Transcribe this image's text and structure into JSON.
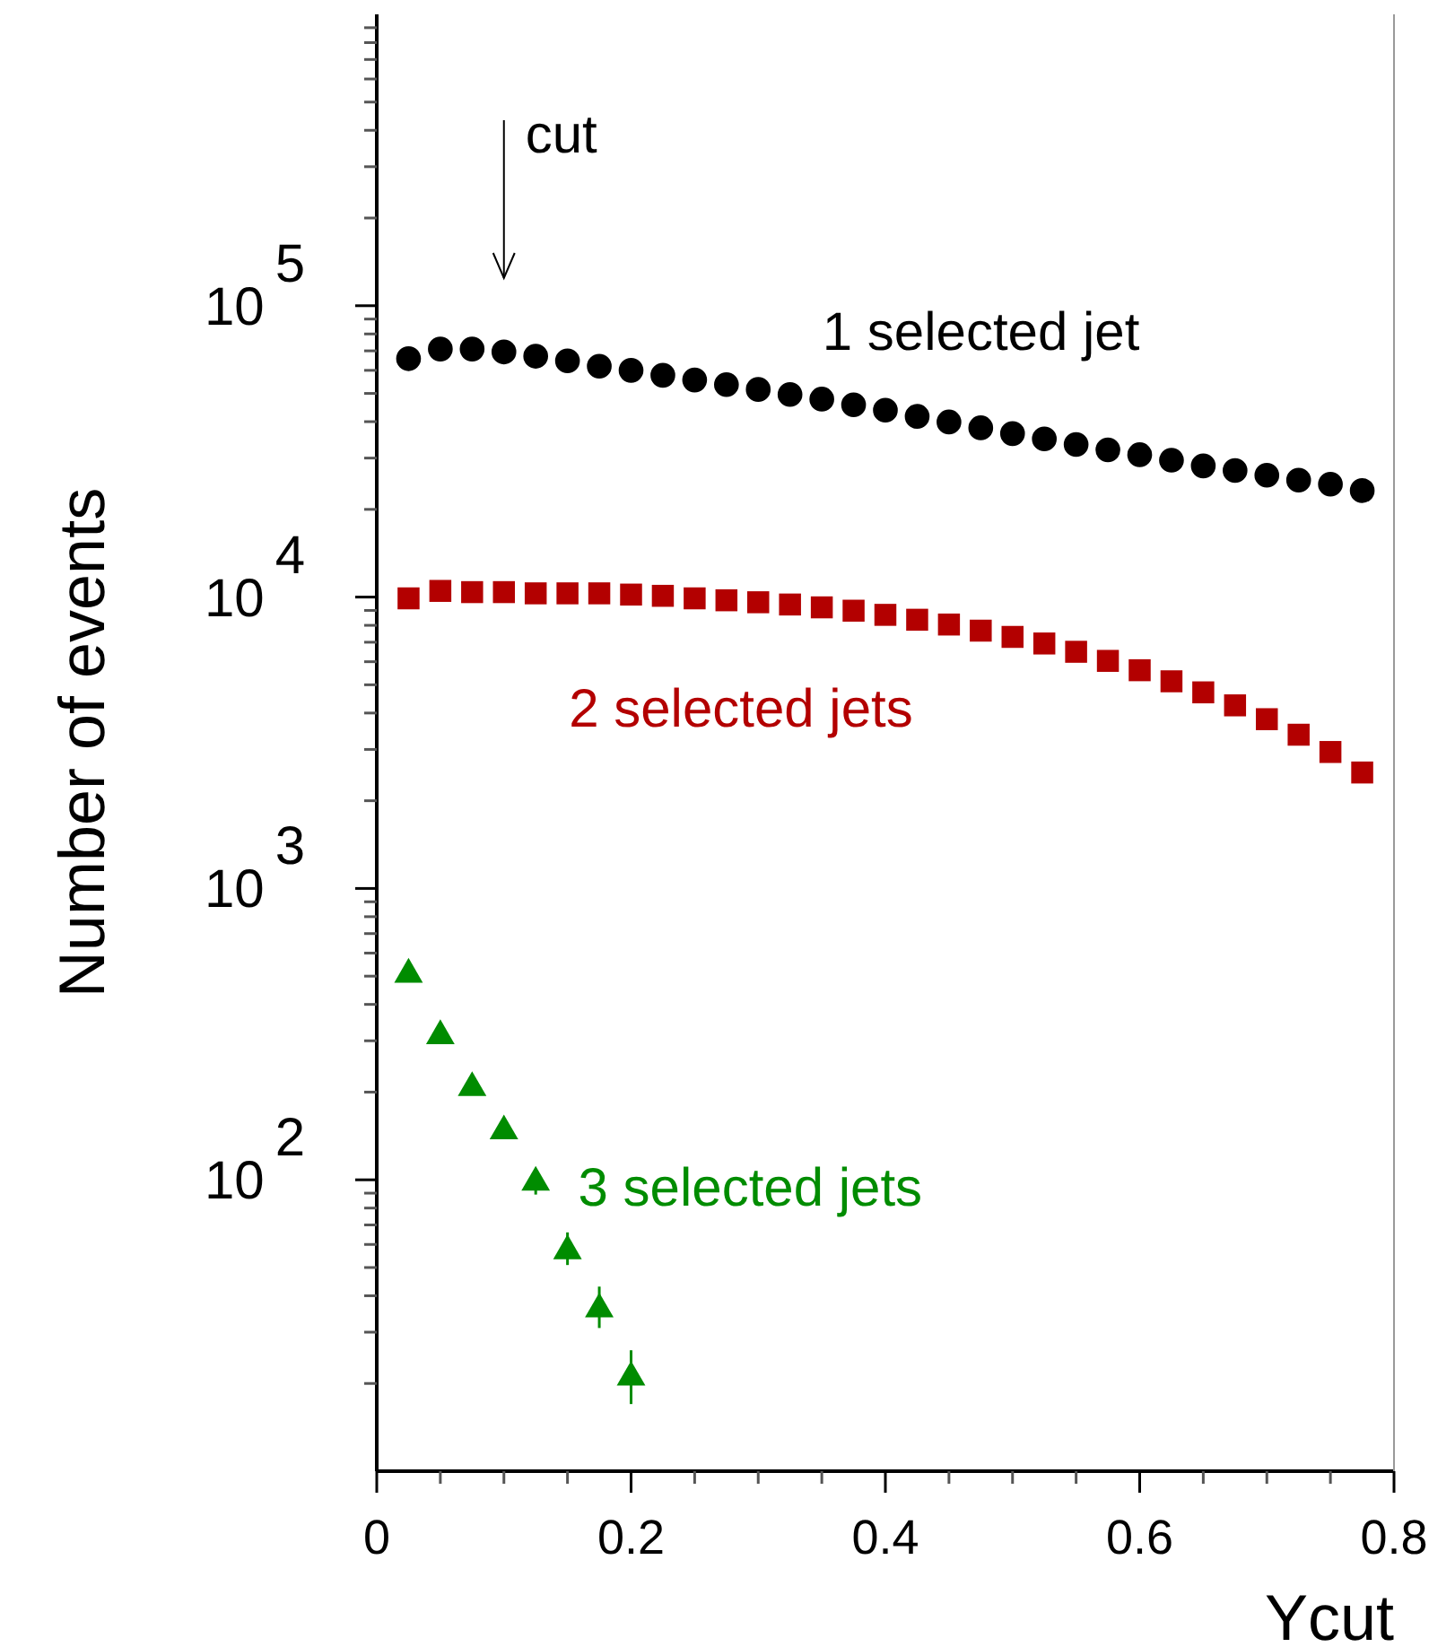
{
  "chart_data": {
    "type": "scatter",
    "xlabel": "Ycut",
    "ylabel": "Number of events",
    "log": "y",
    "legend": false,
    "xlim": [
      0,
      0.8
    ],
    "ylim": [
      10,
      1000000
    ],
    "xticks": [
      0,
      {
        "value": 0.05,
        "label": null
      },
      {
        "value": 0.1,
        "label": null
      },
      {
        "value": 0.15,
        "label": null
      },
      0.2,
      {
        "value": 0.25,
        "label": null
      },
      {
        "value": 0.3,
        "label": null
      },
      {
        "value": 0.35,
        "label": null
      },
      0.4,
      {
        "value": 0.45,
        "label": null
      },
      {
        "value": 0.5,
        "label": null
      },
      {
        "value": 0.55,
        "label": null
      },
      0.6,
      {
        "value": 0.65,
        "label": null
      },
      {
        "value": 0.7,
        "label": null
      },
      {
        "value": 0.75,
        "label": null
      },
      0.8
    ],
    "yticks": [
      {
        "value": 20,
        "label": null
      },
      {
        "value": 30,
        "label": null
      },
      {
        "value": 40,
        "label": null
      },
      {
        "value": 50,
        "label": null
      },
      {
        "value": 60,
        "label": null
      },
      {
        "value": 70,
        "label": null
      },
      {
        "value": 80,
        "label": null
      },
      {
        "value": 90,
        "label": null
      },
      {
        "value": 100,
        "label": "10$^{2}$"
      },
      {
        "value": 200,
        "label": null
      },
      {
        "value": 300,
        "label": null
      },
      {
        "value": 400,
        "label": null
      },
      {
        "value": 500,
        "label": null
      },
      {
        "value": 600,
        "label": null
      },
      {
        "value": 700,
        "label": null
      },
      {
        "value": 800,
        "label": null
      },
      {
        "value": 900,
        "label": null
      },
      {
        "value": 1000,
        "label": "10$^{3}$"
      },
      {
        "value": 2000,
        "label": null
      },
      {
        "value": 3000,
        "label": null
      },
      {
        "value": 4000,
        "label": null
      },
      {
        "value": 5000,
        "label": null
      },
      {
        "value": 6000,
        "label": null
      },
      {
        "value": 7000,
        "label": null
      },
      {
        "value": 8000,
        "label": null
      },
      {
        "value": 9000,
        "label": null
      },
      {
        "value": 10000,
        "label": "10$^{4}$"
      },
      {
        "value": 20000,
        "label": null
      },
      {
        "value": 30000,
        "label": null
      },
      {
        "value": 40000,
        "label": null
      },
      {
        "value": 50000,
        "label": null
      },
      {
        "value": 60000,
        "label": null
      },
      {
        "value": 70000,
        "label": null
      },
      {
        "value": 80000,
        "label": null
      },
      {
        "value": 90000,
        "label": null
      },
      {
        "value": 100000,
        "label": "10$^{5}$"
      },
      {
        "value": 200000,
        "label": null
      },
      {
        "value": 300000,
        "label": null
      },
      {
        "value": 400000,
        "label": null
      },
      {
        "value": 500000,
        "label": null
      },
      {
        "value": 600000,
        "label": null
      },
      {
        "value": 700000,
        "label": null
      },
      {
        "value": 800000,
        "label": null
      },
      {
        "value": 900000,
        "label": null
      }
    ],
    "annotations": [
      "cut"
    ],
    "series": [
      {
        "name": "1 selected jet",
        "color": "#000000",
        "marker": "circle",
        "x": [
          0.025,
          0.05,
          0.075,
          0.1,
          0.125,
          0.15,
          0.175,
          0.2,
          0.225,
          0.25,
          0.275,
          0.3,
          0.325,
          0.35,
          0.375,
          0.4,
          0.425,
          0.45,
          0.475,
          0.5,
          0.525,
          0.55,
          0.575,
          0.6,
          0.625,
          0.65,
          0.675,
          0.7,
          0.725,
          0.75,
          0.775
        ],
        "values": [
          65800,
          71000,
          71000,
          69400,
          67100,
          64700,
          62000,
          60000,
          57700,
          55600,
          53600,
          51600,
          49600,
          47800,
          45700,
          43800,
          41700,
          39900,
          38100,
          36400,
          34900,
          33400,
          32000,
          30800,
          29500,
          28200,
          27200,
          26200,
          25200,
          24400,
          23200
        ]
      },
      {
        "name": "2 selected jets",
        "color": "#b30000",
        "marker": "square",
        "x": [
          0.025,
          0.05,
          0.075,
          0.1,
          0.125,
          0.15,
          0.175,
          0.2,
          0.225,
          0.25,
          0.275,
          0.3,
          0.325,
          0.35,
          0.375,
          0.4,
          0.425,
          0.45,
          0.475,
          0.5,
          0.525,
          0.55,
          0.575,
          0.6,
          0.625,
          0.65,
          0.675,
          0.7,
          0.725,
          0.75,
          0.775
        ],
        "values": [
          9900,
          10500,
          10400,
          10400,
          10300,
          10300,
          10300,
          10200,
          10100,
          9900,
          9750,
          9600,
          9430,
          9220,
          8980,
          8690,
          8360,
          8050,
          7670,
          7300,
          6930,
          6490,
          6040,
          5610,
          5140,
          4710,
          4250,
          3810,
          3370,
          2940,
          2500
        ]
      },
      {
        "name": "3 selected jets",
        "color": "#008c00",
        "marker": "triangle",
        "x": [
          0.025,
          0.05,
          0.075,
          0.1,
          0.125,
          0.15,
          0.175,
          0.2
        ],
        "values": [
          507,
          312,
          207,
          147,
          98,
          57,
          36,
          21
        ],
        "errors": [
          null,
          null,
          null,
          null,
          [
            89,
            109
          ],
          [
            51,
            66
          ],
          [
            31,
            43
          ],
          [
            17,
            26
          ]
        ]
      }
    ]
  }
}
